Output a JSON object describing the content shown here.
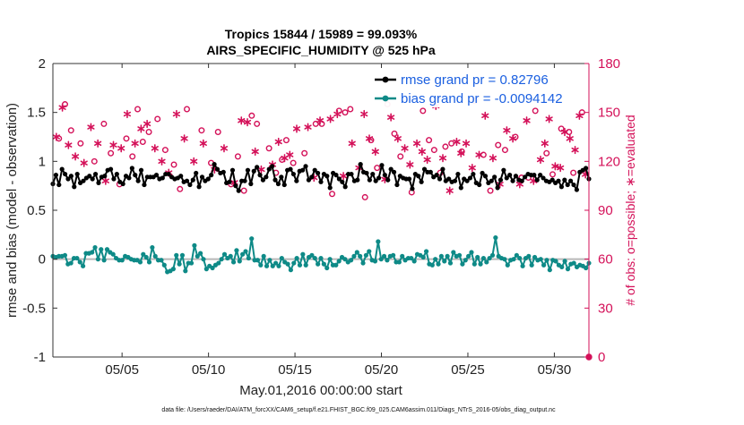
{
  "chart_data": {
    "type": "line",
    "title_line1": "Tropics 15844 / 15989 = 99.093%",
    "title_line2": "AIRS_SPECIFIC_HUMIDITY @ 525 hPa",
    "xlabel": "May.01,2016 00:00:00 start",
    "ylabel_left": "rmse and bias (model - observation)",
    "ylabel_right": "# of obs: o=possible; ∗=evaluated",
    "ylim_left": [
      -1,
      2
    ],
    "ylim_right": [
      0,
      180
    ],
    "xlim": [
      1.0,
      32.0
    ],
    "left_ticks": [
      "-1",
      "-0.5",
      "0",
      "0.5",
      "1",
      "1.5",
      "2"
    ],
    "left_tick_values": [
      -1,
      -0.5,
      0,
      0.5,
      1,
      1.5,
      2
    ],
    "right_ticks": [
      "0",
      "30",
      "60",
      "90",
      "120",
      "150",
      "180"
    ],
    "right_tick_values": [
      0,
      30,
      60,
      90,
      120,
      150,
      180
    ],
    "x_ticks": [
      "05/05",
      "05/10",
      "05/15",
      "05/20",
      "05/25",
      "05/30"
    ],
    "x_tick_values": [
      5,
      10,
      15,
      20,
      25,
      30
    ],
    "series": [
      {
        "name": "rmse grand pr = 0.82796",
        "color": "#000000",
        "axis": "left",
        "values": [
          0.77,
          0.86,
          0.76,
          0.92,
          0.87,
          0.82,
          0.85,
          0.74,
          0.87,
          0.78,
          0.8,
          0.83,
          0.85,
          0.82,
          0.87,
          0.78,
          0.84,
          0.85,
          0.91,
          0.92,
          0.82,
          0.87,
          0.79,
          0.77,
          0.85,
          0.83,
          0.93,
          0.86,
          0.8,
          0.91,
          0.76,
          0.84,
          0.84,
          0.84,
          0.86,
          0.82,
          0.83,
          0.87,
          0.87,
          0.84,
          0.82,
          0.83,
          0.85,
          0.79,
          0.8,
          0.76,
          0.81,
          0.88,
          0.74,
          0.84,
          0.8,
          0.82,
          0.86,
          0.97,
          0.92,
          0.88,
          0.89,
          0.78,
          0.79,
          0.91,
          0.75,
          0.7,
          0.8,
          0.8,
          0.91,
          0.77,
          0.9,
          0.94,
          0.86,
          0.81,
          0.84,
          0.92,
          0.95,
          0.81,
          0.77,
          0.84,
          0.76,
          0.91,
          0.92,
          0.87,
          0.8,
          0.9,
          0.91,
          0.95,
          0.81,
          0.84,
          0.91,
          0.88,
          0.79,
          0.87,
          0.85,
          0.73,
          0.88,
          0.86,
          0.82,
          0.79,
          0.74,
          0.87,
          0.87,
          0.8,
          0.81,
          0.97,
          0.89,
          0.88,
          0.81,
          0.87,
          0.8,
          0.83,
          0.96,
          0.86,
          0.81,
          0.92,
          0.89,
          0.76,
          0.85,
          0.83,
          0.82,
          0.82,
          0.72,
          0.87,
          0.85,
          0.79,
          0.92,
          0.89,
          0.89,
          0.84,
          0.86,
          0.82,
          0.92,
          0.8,
          0.82,
          0.79,
          0.8,
          0.87,
          0.73,
          0.82,
          0.8,
          0.83,
          0.87,
          0.78,
          0.76,
          0.88,
          0.85,
          0.78,
          0.8,
          0.84,
          0.73,
          0.81,
          0.91,
          0.83,
          0.86,
          0.8,
          0.85,
          0.81,
          0.8,
          0.84,
          0.87,
          0.86,
          0.86,
          0.81,
          0.86,
          0.83,
          0.8,
          0.79,
          0.81,
          0.78,
          0.8,
          0.74,
          0.81,
          0.76,
          0.8,
          0.76,
          0.71,
          0.89,
          0.91,
          0.93,
          0.82
        ]
      },
      {
        "name": "bias grand pr = -0.0094142",
        "color": "#0e8a87",
        "axis": "left",
        "values": [
          0.03,
          0.02,
          0.03,
          0.03,
          0.04,
          -0.05,
          -0.04,
          0.01,
          0.01,
          -0.03,
          -0.07,
          0.06,
          0.06,
          0.07,
          0.12,
          0.0,
          0.1,
          -0.01,
          0.1,
          0.07,
          0.05,
          0.01,
          -0.01,
          -0.01,
          0.03,
          0.02,
          0.0,
          -0.01,
          -0.01,
          -0.03,
          0.05,
          0.02,
          -0.03,
          0.12,
          0.03,
          -0.01,
          -0.01,
          -0.06,
          -0.13,
          -0.12,
          -0.1,
          0.04,
          -0.05,
          0.04,
          -0.12,
          -0.04,
          -0.04,
          0.14,
          0.03,
          0.06,
          0.0,
          -0.1,
          -0.07,
          -0.09,
          -0.06,
          -0.04,
          0.0,
          0.05,
          0.01,
          0.03,
          -0.03,
          0.09,
          -0.02,
          0.05,
          0.08,
          0.01,
          0.21,
          -0.01,
          -0.01,
          -0.06,
          0.03,
          -0.07,
          -0.01,
          -0.07,
          -0.04,
          -0.07,
          0.01,
          -0.03,
          -0.05,
          -0.11,
          -0.04,
          0.01,
          -0.06,
          0.05,
          -0.06,
          0.02,
          0.04,
          0.01,
          -0.05,
          0.01,
          -0.05,
          -0.09,
          0.0,
          -0.06,
          -0.06,
          -0.02,
          0.02,
          0.0,
          -0.03,
          -0.01,
          0.03,
          0.07,
          0.03,
          -0.04,
          0.04,
          0.08,
          -0.01,
          -0.02,
          0.18,
          0.0,
          0.03,
          -0.01,
          0.03,
          0.04,
          -0.03,
          -0.03,
          0.03,
          -0.01,
          0.01,
          0.01,
          -0.02,
          0.05,
          0.04,
          0.02,
          0.08,
          -0.05,
          -0.06,
          0.0,
          -0.05,
          0.03,
          -0.02,
          0.03,
          -0.04,
          0.07,
          0.03,
          0.04,
          -0.05,
          -0.01,
          0.03,
          0.07,
          -0.05,
          0.02,
          -0.05,
          0.01,
          -0.03,
          0.01,
          0.04,
          0.22,
          0.03,
          0.01,
          0.0,
          -0.06,
          -0.01,
          0.0,
          0.04,
          0.01,
          -0.07,
          0.01,
          0.03,
          -0.06,
          0.02,
          -0.01,
          0.0,
          -0.06,
          -0.01,
          -0.11,
          -0.01,
          -0.02,
          -0.06,
          -0.08,
          -0.02,
          -0.1,
          -0.05,
          -0.04,
          -0.08,
          -0.06,
          -0.07,
          -0.09,
          -0.04
        ]
      }
    ],
    "obs_possible": {
      "name": "possible",
      "marker": "o",
      "color": "#d41159",
      "axis": "right",
      "x": [
        1.35,
        1.7,
        2.05,
        2.6,
        3.4,
        3.95,
        4.35,
        4.85,
        5.25,
        5.6,
        5.9,
        6.2,
        6.55,
        7.05,
        7.5,
        8.0,
        8.35,
        8.75,
        9.6,
        10.15,
        10.55,
        11.3,
        11.7,
        12.05,
        12.5,
        12.8,
        13.5,
        13.9,
        14.25,
        14.5,
        14.9,
        15.55,
        16.2,
        16.55,
        17.15,
        17.55,
        17.9,
        18.2,
        19.05,
        19.4,
        19.75,
        20.35,
        20.75,
        21.1,
        21.75,
        22.4,
        22.75,
        23.05,
        23.4,
        23.7,
        24.05,
        24.65,
        25.4,
        25.9,
        26.3,
        26.75,
        27.15,
        27.75,
        28.1,
        28.5,
        28.9,
        29.55,
        29.9,
        30.4,
        30.85,
        31.1,
        31.6
      ],
      "y": [
        134,
        155,
        139,
        131,
        120,
        143,
        125,
        106,
        134,
        123,
        152,
        132,
        138,
        146,
        127,
        118,
        103,
        152,
        139,
        119,
        138,
        106,
        123,
        102,
        148,
        143,
        128,
        113,
        121,
        133,
        119,
        125,
        143,
        143,
        100,
        151,
        150,
        152,
        98,
        133,
        116,
        155,
        137,
        123,
        101,
        151,
        133,
        127,
        113,
        129,
        131,
        126,
        157,
        124,
        102,
        130,
        127,
        135,
        110,
        110,
        151,
        125,
        112,
        140,
        138,
        113,
        150
      ]
    },
    "obs_evaluated": {
      "name": "evaluated",
      "marker": "*",
      "color": "#d41159",
      "axis": "right",
      "x": [
        1.2,
        1.55,
        1.9,
        2.3,
        2.8,
        3.2,
        3.6,
        4.05,
        4.5,
        4.95,
        5.3,
        5.75,
        6.1,
        6.45,
        6.9,
        7.3,
        7.7,
        8.15,
        8.6,
        9.15,
        9.7,
        10.35,
        10.9,
        11.5,
        11.9,
        12.25,
        12.7,
        13.05,
        13.7,
        14.05,
        14.4,
        14.7,
        15.1,
        15.75,
        16.1,
        16.45,
        17.05,
        17.45,
        17.8,
        18.3,
        18.7,
        19.0,
        19.3,
        19.65,
        20.2,
        20.55,
        20.95,
        21.35,
        21.65,
        22.05,
        22.35,
        22.65,
        23.15,
        23.55,
        23.95,
        24.35,
        24.6,
        24.9,
        25.25,
        25.65,
        26.0,
        26.45,
        26.85,
        27.25,
        27.6,
        28.0,
        28.4,
        28.8,
        29.2,
        29.45,
        29.7,
        30.05,
        30.35,
        30.6,
        30.9,
        31.2,
        31.45,
        31.8
      ],
      "y": [
        135,
        153,
        130,
        123,
        119,
        141,
        131,
        108,
        130,
        128,
        149,
        131,
        140,
        143,
        128,
        120,
        113,
        149,
        134,
        120,
        131,
        115,
        128,
        107,
        145,
        144,
        126,
        115,
        118,
        132,
        122,
        124,
        140,
        141,
        110,
        145,
        146,
        149,
        111,
        131,
        116,
        149,
        134,
        126,
        109,
        147,
        134,
        128,
        118,
        131,
        126,
        121,
        154,
        122,
        102,
        132,
        125,
        131,
        116,
        124,
        148,
        122,
        106,
        139,
        134,
        106,
        145,
        108,
        121,
        131,
        146,
        117,
        116,
        138,
        134,
        127,
        148,
        112
      ]
    }
  },
  "footer_text": "data file: /Users/raeder/DAI/ATM_forcXX/CAM6_setup/f.e21.FHIST_BGC.f09_025.CAM6assim.011/Diags_NTrS_2016-05/obs_diag_output.nc"
}
